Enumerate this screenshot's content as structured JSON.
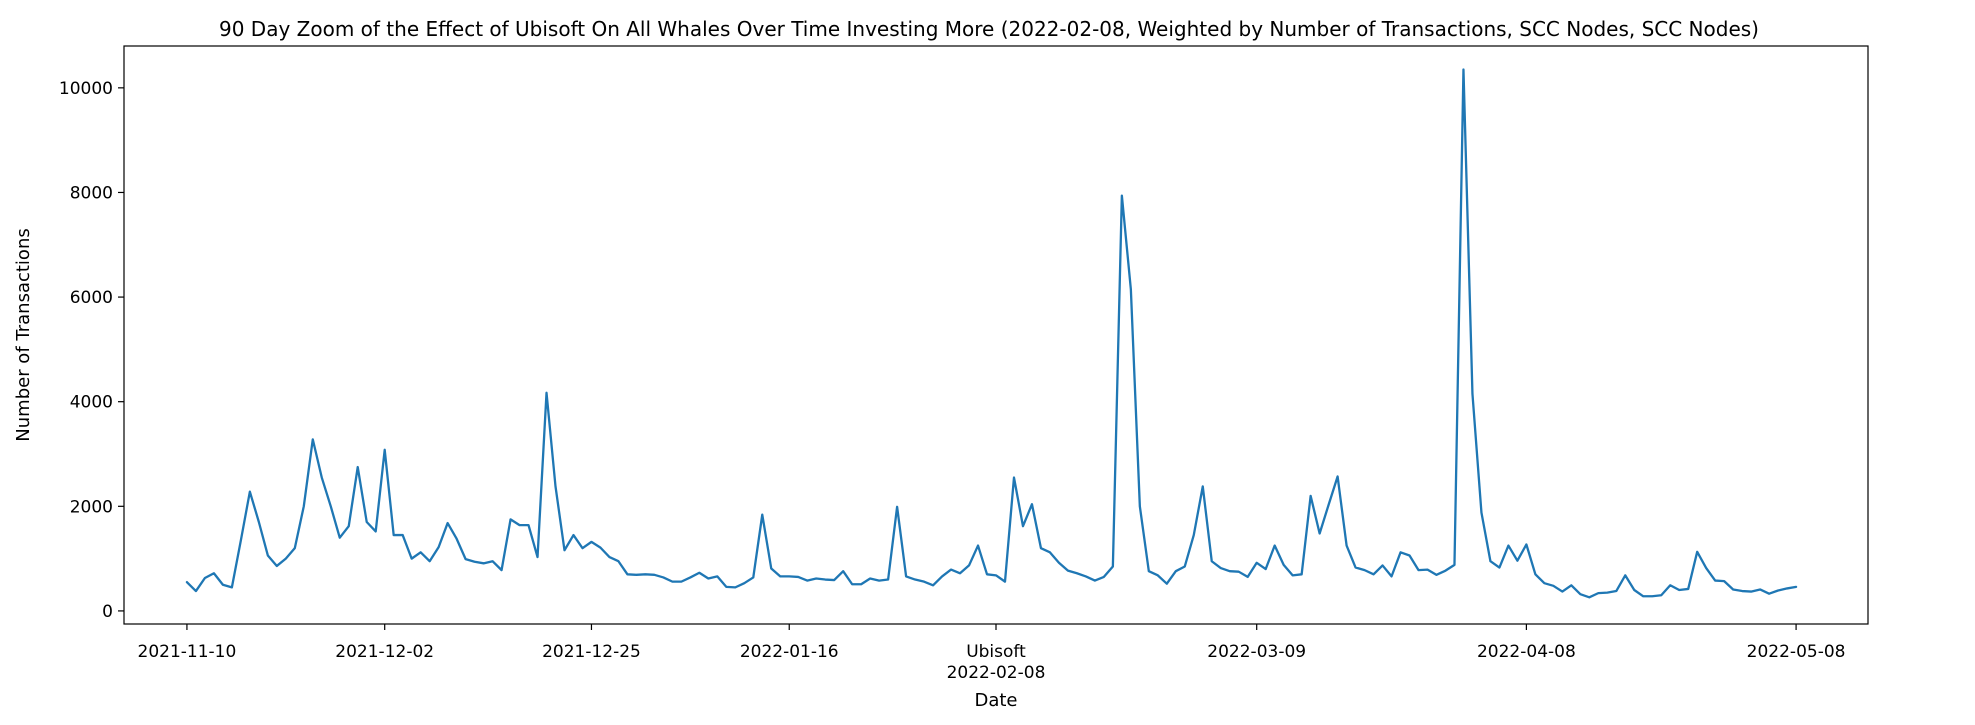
{
  "chart_data": {
    "type": "line",
    "title": "90 Day Zoom of the Effect of Ubisoft On All Whales Over Time Investing More (2022-02-08, Weighted by Number of Transactions, SCC Nodes, SCC Nodes)",
    "xlabel": "Date",
    "ylabel": "Number of Transactions",
    "x_range": [
      "2021-11-03",
      "2022-05-16"
    ],
    "ylim": [
      -250,
      10800
    ],
    "y_ticks": [
      0,
      2000,
      4000,
      6000,
      8000,
      10000
    ],
    "x_ticks": [
      {
        "date": "2021-11-10",
        "label": "2021-11-10"
      },
      {
        "date": "2021-12-02",
        "label": "2021-12-02"
      },
      {
        "date": "2021-12-25",
        "label": "2021-12-25"
      },
      {
        "date": "2022-01-16",
        "label": "2022-01-16"
      },
      {
        "date": "2022-02-08",
        "label": "2022-02-08"
      },
      {
        "date": "2022-03-09",
        "label": "2022-03-09"
      },
      {
        "date": "2022-04-08",
        "label": "2022-04-08"
      },
      {
        "date": "2022-05-08",
        "label": "2022-05-08"
      }
    ],
    "annotation": {
      "date": "2022-02-08",
      "label": "Ubisoft"
    },
    "series": [
      {
        "color": "#1f77b4",
        "start_date": "2021-11-10",
        "values": [
          550,
          380,
          630,
          720,
          500,
          450,
          1350,
          2280,
          1700,
          1060,
          860,
          1000,
          1200,
          2000,
          3280,
          2550,
          2000,
          1400,
          1620,
          2750,
          1700,
          1520,
          3080,
          1450,
          1450,
          1000,
          1120,
          950,
          1220,
          1680,
          1380,
          990,
          940,
          910,
          950,
          780,
          1750,
          1640,
          1640,
          1030,
          4170,
          2380,
          1160,
          1450,
          1200,
          1320,
          1210,
          1030,
          950,
          700,
          690,
          700,
          690,
          640,
          560,
          560,
          640,
          730,
          620,
          660,
          460,
          450,
          530,
          640,
          1840,
          810,
          660,
          660,
          650,
          580,
          620,
          600,
          590,
          760,
          510,
          510,
          620,
          580,
          600,
          1990,
          660,
          600,
          560,
          490,
          660,
          790,
          720,
          870,
          1250,
          700,
          680,
          560,
          2550,
          1620,
          2040,
          1200,
          1120,
          920,
          770,
          720,
          660,
          580,
          650,
          850,
          7940,
          6150,
          2000,
          760,
          680,
          520,
          760,
          850,
          1450,
          2380,
          950,
          820,
          760,
          750,
          650,
          920,
          800,
          1250,
          880,
          680,
          700,
          2200,
          1480,
          2030,
          2570,
          1250,
          830,
          780,
          700,
          870,
          660,
          1120,
          1060,
          780,
          790,
          690,
          770,
          880,
          10350,
          4150,
          1880,
          950,
          830,
          1250,
          960,
          1270,
          700,
          530,
          480,
          370,
          490,
          320,
          260,
          340,
          350,
          380,
          680,
          400,
          280,
          280,
          300,
          490,
          400,
          420,
          1130,
          820,
          580,
          570,
          410,
          380,
          370,
          410,
          330,
          390,
          430,
          460
        ]
      }
    ]
  }
}
